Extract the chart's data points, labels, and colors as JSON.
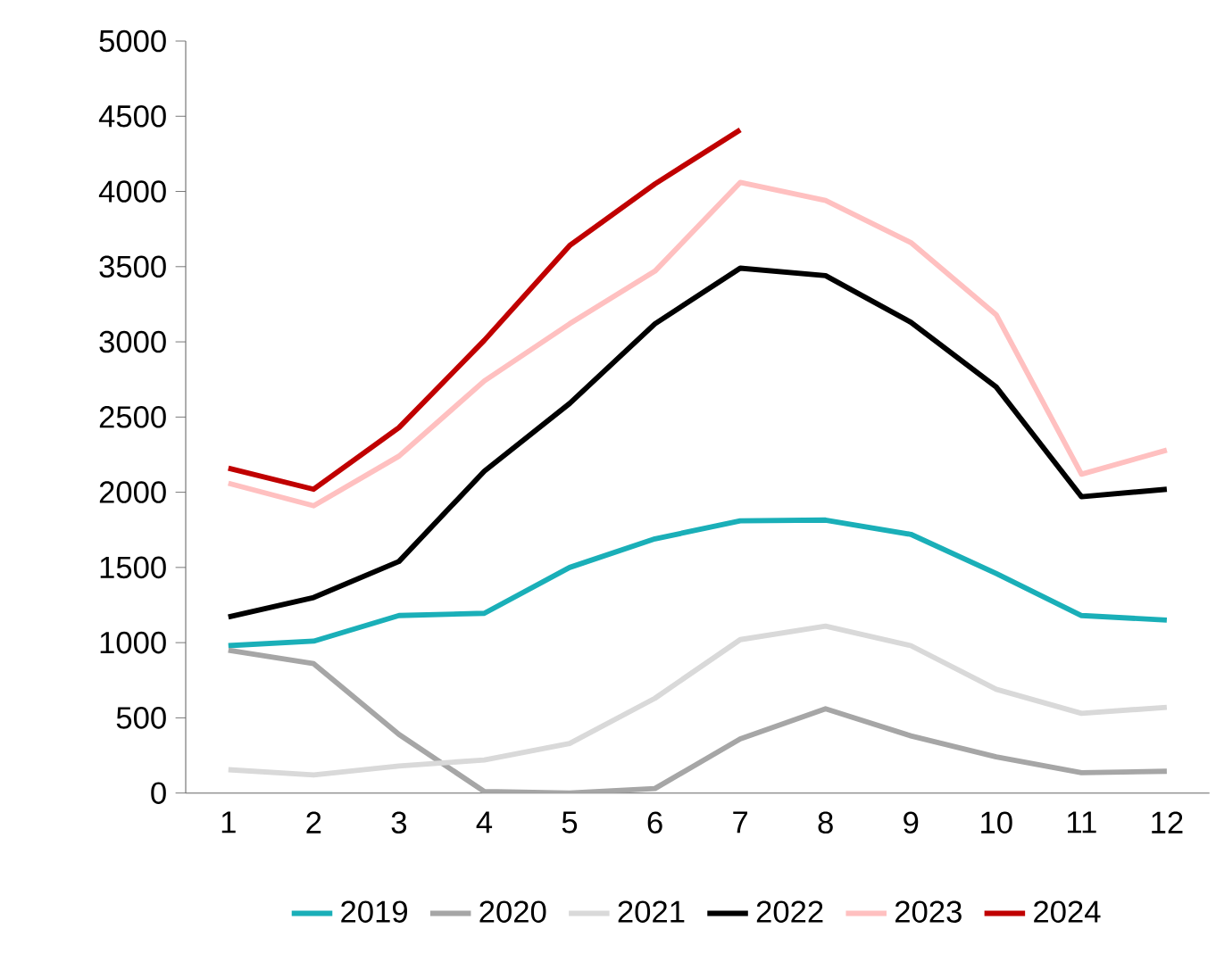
{
  "chart_data": {
    "type": "line",
    "categories": [
      "1",
      "2",
      "3",
      "4",
      "5",
      "6",
      "7",
      "8",
      "9",
      "10",
      "11",
      "12"
    ],
    "ylim": [
      0,
      5000
    ],
    "yticks": [
      0,
      500,
      1000,
      1500,
      2000,
      2500,
      3000,
      3500,
      4000,
      4500,
      5000
    ],
    "grid": false,
    "legend": "bottom",
    "marker": "none",
    "line_style": "solid",
    "series": [
      {
        "name": "2019",
        "color": "#1aafb8",
        "values": [
          980,
          1010,
          1180,
          1195,
          1500,
          1690,
          1810,
          1815,
          1720,
          1460,
          1180,
          1150
        ]
      },
      {
        "name": "2020",
        "color": "#a6a6a6",
        "values": [
          950,
          860,
          390,
          10,
          0,
          30,
          360,
          560,
          380,
          240,
          135,
          145
        ]
      },
      {
        "name": "2021",
        "color": "#d9d9d9",
        "values": [
          155,
          120,
          180,
          220,
          330,
          630,
          1020,
          1110,
          980,
          690,
          530,
          570
        ]
      },
      {
        "name": "2022",
        "color": "#000000",
        "values": [
          1170,
          1300,
          1540,
          2140,
          2590,
          3120,
          3490,
          3440,
          3130,
          2700,
          1970,
          2020
        ]
      },
      {
        "name": "2023",
        "color": "#ffc0c0",
        "values": [
          2060,
          1910,
          2240,
          2740,
          3120,
          3470,
          4060,
          3940,
          3660,
          3180,
          2120,
          2280
        ]
      },
      {
        "name": "2024",
        "color": "#c00000",
        "values": [
          2160,
          2020,
          2430,
          3010,
          3640,
          4050,
          4410,
          null,
          null,
          null,
          null,
          null
        ]
      }
    ]
  }
}
